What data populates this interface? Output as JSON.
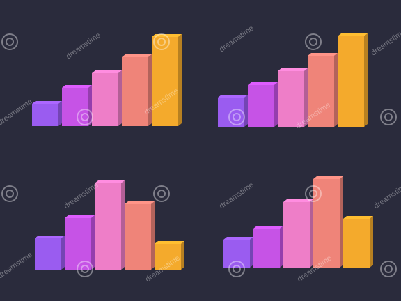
{
  "chart_data": [
    {
      "type": "bar",
      "values": [
        32,
        55,
        76,
        99,
        128
      ],
      "colors": [
        "#9a5cf0",
        "#c653e6",
        "#ee7ec8",
        "#ef8479",
        "#f4aa2c"
      ],
      "ylim": [
        0,
        140
      ]
    },
    {
      "type": "bar",
      "values": [
        42,
        60,
        80,
        102,
        130
      ],
      "colors": [
        "#9a5cf0",
        "#c653e6",
        "#ee7ec8",
        "#ef8479",
        "#f4aa2c"
      ],
      "ylim": [
        0,
        140
      ]
    },
    {
      "type": "bar",
      "values": [
        45,
        74,
        124,
        94,
        37
      ],
      "colors": [
        "#9a5cf0",
        "#c653e6",
        "#ee7ec8",
        "#ef8479",
        "#f4aa2c"
      ],
      "ylim": [
        0,
        140
      ]
    },
    {
      "type": "bar",
      "values": [
        40,
        56,
        94,
        127,
        70
      ],
      "colors": [
        "#9a5cf0",
        "#c653e6",
        "#ee7ec8",
        "#ef8479",
        "#f4aa2c"
      ],
      "ylim": [
        0,
        140
      ]
    }
  ],
  "watermark": "dreamstime"
}
